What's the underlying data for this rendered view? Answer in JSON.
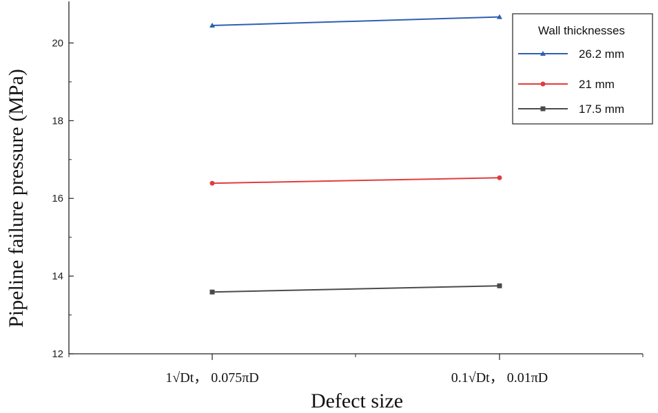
{
  "chart_data": {
    "type": "line",
    "title": "",
    "xlabel": "Defect size",
    "ylabel": "Pipeline failure pressure (MPa)",
    "categories": [
      "1√Dt， 0.075πD",
      "0.1√Dt， 0.01πD"
    ],
    "ylim": [
      12,
      21
    ],
    "yticks": [
      12,
      14,
      16,
      18,
      20
    ],
    "legend_title": "Wall thicknesses",
    "legend_position": "top-right",
    "series": [
      {
        "name": "26.2 mm",
        "values": [
          20.45,
          20.67
        ],
        "color": "#2e5fb0",
        "marker": "triangle"
      },
      {
        "name": "21 mm",
        "values": [
          16.39,
          16.53
        ],
        "color": "#e03c3c",
        "marker": "circle"
      },
      {
        "name": "17.5 mm",
        "values": [
          13.59,
          13.75
        ],
        "color": "#4a4a4a",
        "marker": "square"
      }
    ]
  }
}
